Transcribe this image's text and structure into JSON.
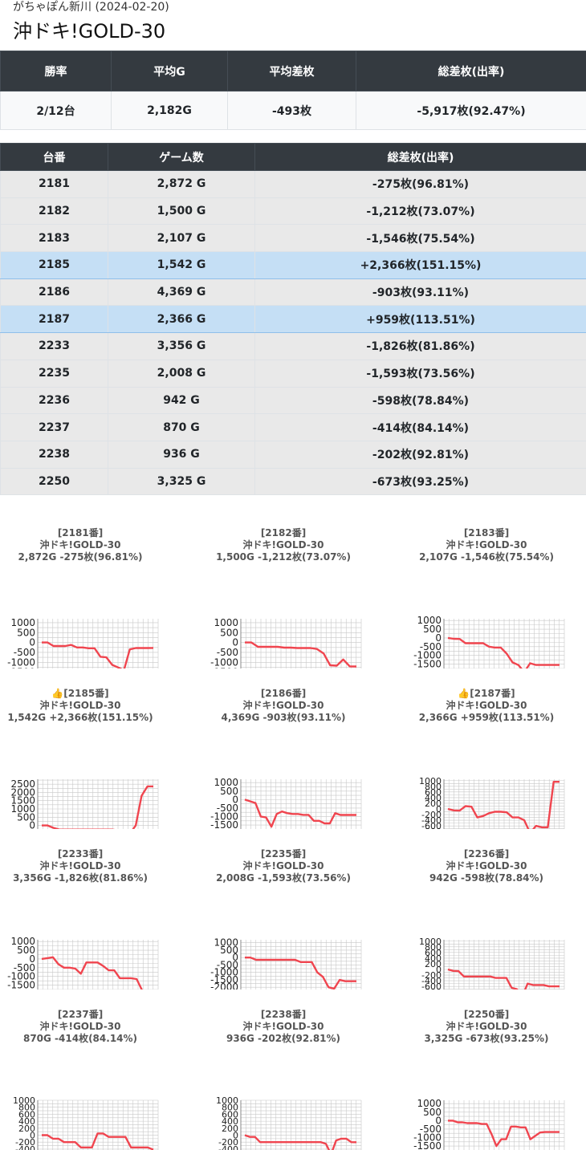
{
  "header": {
    "subtitle": "がちゃぽん新川 (2024-02-20)",
    "title": "沖ドキ!GOLD-30"
  },
  "summary": {
    "headers": [
      "勝率",
      "平均G",
      "平均差枚",
      "総差枚(出率)"
    ],
    "values": [
      "2/12台",
      "2,182G",
      "-493枚",
      "-5,917枚(92.47%)"
    ]
  },
  "machines": {
    "headers": [
      "台番",
      "ゲーム数",
      "総差枚(出率)"
    ],
    "rows": [
      {
        "no": "2181",
        "games": "2,872 G",
        "diff": "-275枚(96.81%)",
        "plus": false
      },
      {
        "no": "2182",
        "games": "1,500 G",
        "diff": "-1,212枚(73.07%)",
        "plus": false
      },
      {
        "no": "2183",
        "games": "2,107 G",
        "diff": "-1,546枚(75.54%)",
        "plus": false
      },
      {
        "no": "2185",
        "games": "1,542 G",
        "diff": "+2,366枚(151.15%)",
        "plus": true
      },
      {
        "no": "2186",
        "games": "4,369 G",
        "diff": "-903枚(93.11%)",
        "plus": false
      },
      {
        "no": "2187",
        "games": "2,366 G",
        "diff": "+959枚(113.51%)",
        "plus": true
      },
      {
        "no": "2233",
        "games": "3,356 G",
        "diff": "-1,826枚(81.86%)",
        "plus": false
      },
      {
        "no": "2235",
        "games": "2,008 G",
        "diff": "-1,593枚(73.56%)",
        "plus": false
      },
      {
        "no": "2236",
        "games": "942 G",
        "diff": "-598枚(78.84%)",
        "plus": false
      },
      {
        "no": "2237",
        "games": "870 G",
        "diff": "-414枚(84.14%)",
        "plus": false
      },
      {
        "no": "2238",
        "games": "936 G",
        "diff": "-202枚(92.81%)",
        "plus": false
      },
      {
        "no": "2250",
        "games": "3,325 G",
        "diff": "-673枚(93.25%)",
        "plus": false
      }
    ]
  },
  "colors": {
    "line": "#f0454f",
    "grid": "#c8c8c8",
    "header_bg": "#343a40",
    "plus_row": "#c5dff5"
  },
  "chart_data": [
    {
      "type": "line",
      "title": "[2181番]",
      "subtitle": "沖ドキ!GOLD-30",
      "caption": "2,872G -275枚(96.81%)",
      "ylim": [
        -1800,
        1200
      ],
      "yticks": [
        1000,
        500,
        0,
        -500,
        -1000,
        -1500
      ],
      "values": [
        0,
        0,
        -180,
        -180,
        -180,
        -120,
        -250,
        -250,
        -290,
        -290,
        -720,
        -750,
        -1130,
        -1260,
        -1400,
        -350,
        -280,
        -280,
        -280,
        -275
      ]
    },
    {
      "type": "line",
      "title": "[2182番]",
      "subtitle": "沖ドキ!GOLD-30",
      "caption": "1,500G -1,212枚(73.07%)",
      "ylim": [
        -1800,
        1200
      ],
      "yticks": [
        1000,
        500,
        0,
        -500,
        -1000,
        -1500
      ],
      "values": [
        0,
        0,
        -220,
        -220,
        -220,
        -220,
        -260,
        -260,
        -280,
        -280,
        -280,
        -330,
        -550,
        -1150,
        -1170,
        -860,
        -1210,
        -1212
      ]
    },
    {
      "type": "line",
      "title": "[2183番]",
      "subtitle": "沖ドキ!GOLD-30",
      "caption": "2,107G -1,546枚(75.54%)",
      "ylim": [
        -2300,
        1100
      ],
      "yticks": [
        1000,
        500,
        0,
        -500,
        -1000,
        -1500,
        -2000
      ],
      "values": [
        0,
        -50,
        -60,
        -300,
        -300,
        -300,
        -300,
        -500,
        -550,
        -550,
        -900,
        -1400,
        -1550,
        -1950,
        -1450,
        -1546,
        -1546,
        -1546,
        -1546,
        -1546
      ]
    },
    {
      "type": "line",
      "title": "👍[2185番]",
      "subtitle": "沖ドキ!GOLD-30",
      "caption": "1,542G +2,366枚(151.15%)",
      "ylim": [
        -800,
        2800
      ],
      "yticks": [
        2500,
        2000,
        1500,
        1000,
        500,
        0,
        -500
      ],
      "values": [
        0,
        0,
        -150,
        -250,
        -250,
        -250,
        -250,
        -250,
        -250,
        -250,
        -250,
        -250,
        -250,
        -300,
        -350,
        -500,
        0,
        1800,
        2366,
        2366
      ]
    },
    {
      "type": "line",
      "title": "[2186番]",
      "subtitle": "沖ドキ!GOLD-30",
      "caption": "4,369G -903枚(93.11%)",
      "ylim": [
        -2300,
        1200
      ],
      "yticks": [
        1000,
        500,
        0,
        -500,
        -1000,
        -1500,
        -2000
      ],
      "values": [
        0,
        -100,
        -200,
        -1000,
        -1050,
        -1600,
        -850,
        -700,
        -800,
        -850,
        -850,
        -900,
        -900,
        -1250,
        -1250,
        -1400,
        -1400,
        -800,
        -903,
        -903,
        -903,
        -903
      ]
    },
    {
      "type": "line",
      "title": "👍[2187番]",
      "subtitle": "沖ドキ!GOLD-30",
      "caption": "2,366G +959枚(113.51%)",
      "ylim": [
        -1050,
        1050
      ],
      "yticks": [
        1000,
        800,
        600,
        400,
        200,
        0,
        -200,
        -400,
        -600,
        -800,
        -1000
      ],
      "values": [
        0,
        -50,
        -60,
        100,
        80,
        -300,
        -250,
        -150,
        -100,
        -100,
        -120,
        -300,
        -300,
        -400,
        -850,
        -600,
        -650,
        -650,
        959,
        959
      ]
    },
    {
      "type": "line",
      "title": "[2233番]",
      "subtitle": "沖ドキ!GOLD-30",
      "caption": "3,356G -1,826枚(81.86%)",
      "ylim": [
        -2300,
        1100
      ],
      "yticks": [
        1000,
        500,
        0,
        -500,
        -1000,
        -1500,
        -2000
      ],
      "values": [
        0,
        50,
        100,
        -300,
        -500,
        -500,
        -550,
        -850,
        -200,
        -200,
        -200,
        -400,
        -650,
        -650,
        -1100,
        -1100,
        -1100,
        -1150,
        -1800,
        -1826,
        -1826
      ]
    },
    {
      "type": "line",
      "title": "[2235番]",
      "subtitle": "沖ドキ!GOLD-30",
      "caption": "2,008G -1,593枚(73.56%)",
      "ylim": [
        -2800,
        1200
      ],
      "yticks": [
        1000,
        500,
        0,
        -500,
        -1000,
        -1500,
        -2000,
        -2500
      ],
      "values": [
        0,
        0,
        -150,
        -150,
        -150,
        -150,
        -150,
        -150,
        -150,
        -150,
        -300,
        -300,
        -300,
        -1000,
        -1300,
        -2000,
        -2100,
        -1500,
        -1593,
        -1593,
        -1593
      ]
    },
    {
      "type": "line",
      "title": "[2236番]",
      "subtitle": "沖ドキ!GOLD-30",
      "caption": "942G -598枚(78.84%)",
      "ylim": [
        -1050,
        1050
      ],
      "yticks": [
        1000,
        800,
        600,
        400,
        200,
        0,
        -200,
        -400,
        -600,
        -800,
        -1000
      ],
      "values": [
        0,
        -50,
        -60,
        -250,
        -250,
        -250,
        -250,
        -250,
        -250,
        -300,
        -300,
        -300,
        -650,
        -700,
        -950,
        -500,
        -550,
        -550,
        -550,
        -600,
        -600,
        -598
      ]
    },
    {
      "type": "line",
      "title": "[2237番]",
      "subtitle": "沖ドキ!GOLD-30",
      "caption": "870G -414枚(84.14%)",
      "ylim": [
        -700,
        1000
      ],
      "yticks": [
        1000,
        800,
        600,
        400,
        200,
        0,
        -200,
        -400,
        -600
      ],
      "values": [
        0,
        0,
        -100,
        -100,
        -200,
        -200,
        -200,
        -350,
        -350,
        -350,
        50,
        50,
        -50,
        -50,
        -50,
        -50,
        -350,
        -350,
        -350,
        -350,
        -414
      ]
    },
    {
      "type": "line",
      "title": "[2238番]",
      "subtitle": "沖ドキ!GOLD-30",
      "caption": "936G -202枚(92.81%)",
      "ylim": [
        -700,
        1000
      ],
      "yticks": [
        1000,
        800,
        600,
        400,
        200,
        0,
        -200,
        -400,
        -600
      ],
      "values": [
        0,
        -50,
        -50,
        -200,
        -200,
        -200,
        -200,
        -200,
        -200,
        -200,
        -200,
        -200,
        -200,
        -200,
        -200,
        -200,
        -250,
        -550,
        -150,
        -100,
        -100,
        -200,
        -202
      ]
    },
    {
      "type": "line",
      "title": "[2250番]",
      "subtitle": "沖ドキ!GOLD-30",
      "caption": "3,325G -673枚(93.25%)",
      "ylim": [
        -2300,
        1200
      ],
      "yticks": [
        1000,
        500,
        0,
        -500,
        -1000,
        -1500,
        -2000
      ],
      "values": [
        0,
        0,
        -100,
        -100,
        -150,
        -150,
        -150,
        -200,
        -200,
        -800,
        -1500,
        -1100,
        -1100,
        -350,
        -350,
        -400,
        -400,
        -1100,
        -900,
        -700,
        -673,
        -673,
        -673,
        -673
      ]
    }
  ]
}
